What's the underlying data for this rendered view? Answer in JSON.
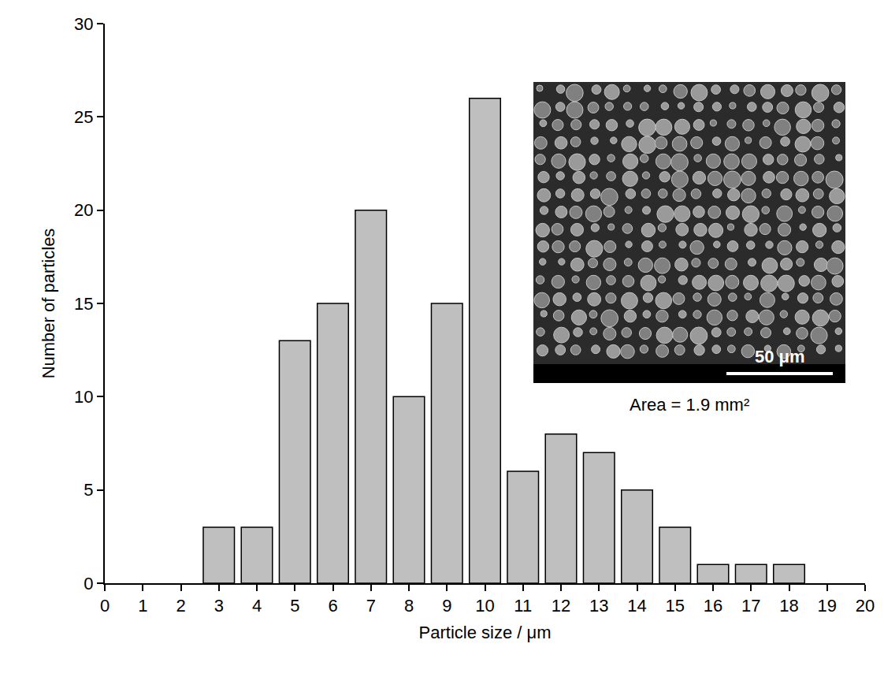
{
  "chart_data": {
    "type": "bar",
    "x_label": "Particle size / μm",
    "y_label": "Number of particles",
    "x": [
      3,
      4,
      5,
      6,
      7,
      8,
      9,
      10,
      11,
      12,
      13,
      14,
      15,
      16,
      17,
      18
    ],
    "values": [
      3,
      3,
      13,
      15,
      20,
      10,
      15,
      26,
      6,
      8,
      7,
      5,
      3,
      1,
      1,
      1
    ],
    "color": "#c0bfbf",
    "xlim": [
      0,
      20
    ],
    "xticks": [
      0,
      1,
      2,
      3,
      4,
      5,
      6,
      7,
      8,
      9,
      10,
      11,
      12,
      13,
      14,
      15,
      16,
      17,
      18,
      19,
      20
    ],
    "ylim": [
      0,
      30
    ],
    "yticks": [
      0,
      5,
      10,
      15,
      20,
      25,
      30
    ],
    "grid": false,
    "annotations": [
      "50 μm",
      "Area = 1.9 mm²"
    ]
  }
}
